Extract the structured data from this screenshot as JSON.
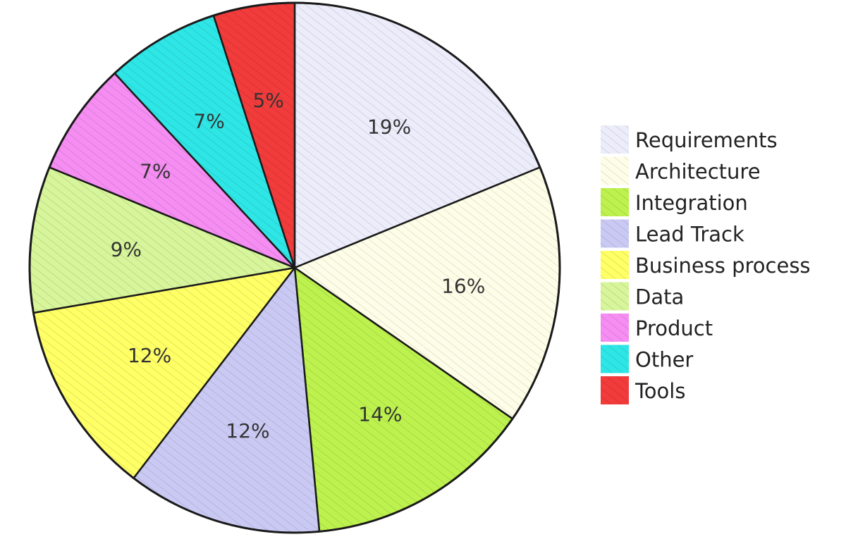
{
  "chart_data": {
    "type": "pie",
    "title": "",
    "legend_position": "right",
    "start_angle": "top",
    "direction": "clockwise",
    "slices": [
      {
        "name": "Requirements",
        "value": 19,
        "label": "19%",
        "color": "#ECECFB"
      },
      {
        "name": "Architecture",
        "value": 16,
        "label": "16%",
        "color": "#FEFEE8"
      },
      {
        "name": "Integration",
        "value": 14,
        "label": "14%",
        "color": "#BDF24E"
      },
      {
        "name": "Lead Track",
        "value": 12,
        "label": "12%",
        "color": "#C9C9F4"
      },
      {
        "name": "Business process",
        "value": 12,
        "label": "12%",
        "color": "#FFFF66"
      },
      {
        "name": "Data",
        "value": 9,
        "label": "9%",
        "color": "#D7F59A"
      },
      {
        "name": "Product",
        "value": 7,
        "label": "7%",
        "color": "#F58DF2"
      },
      {
        "name": "Other",
        "value": 7,
        "label": "7%",
        "color": "#2EE6E6"
      },
      {
        "name": "Tools",
        "value": 5,
        "label": "5%",
        "color": "#F23B3B"
      }
    ]
  }
}
